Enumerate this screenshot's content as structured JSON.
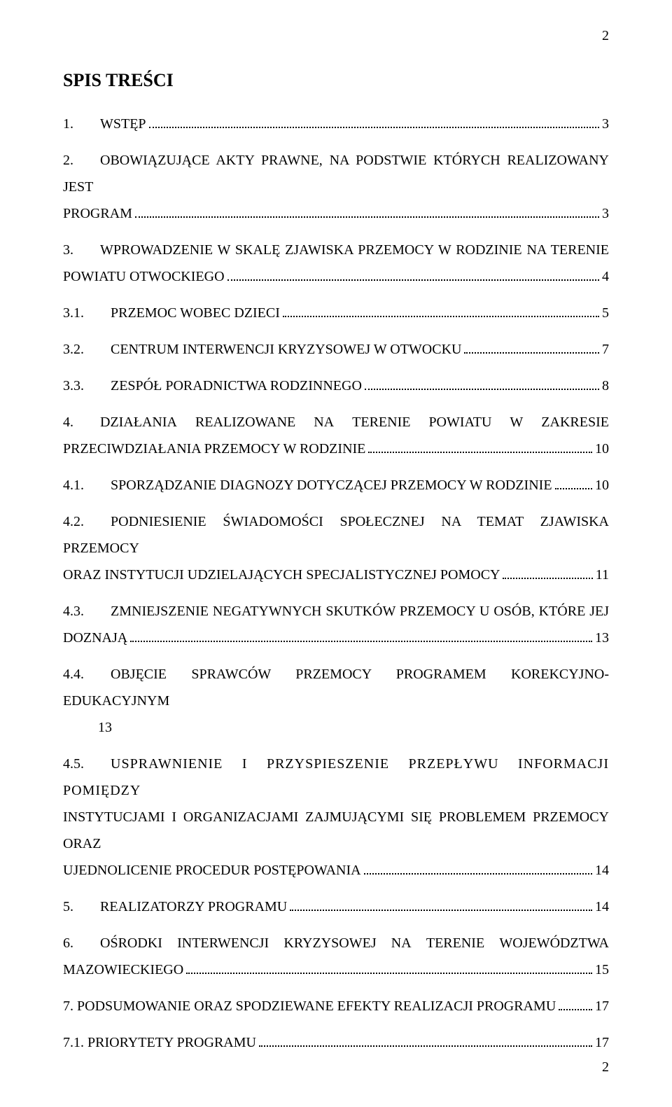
{
  "page": {
    "top_number": "2",
    "bottom_number": "2",
    "title": "SPIS TREŚCI",
    "background_color": "#ffffff",
    "text_color": "#000000",
    "font_family": "Times New Roman",
    "title_fontsize": 26,
    "body_fontsize": 20
  },
  "toc": {
    "e1": {
      "num": "1.",
      "text": "WSTĘP",
      "page": "3"
    },
    "e2": {
      "num": "2.",
      "text_l1": "OBOWIĄZUJĄCE AKTY PRAWNE, NA PODSTWIE KTÓRYCH REALIZOWANY JEST",
      "text_last": "PROGRAM",
      "page": "3"
    },
    "e3": {
      "num": "3.",
      "text_l1": "WPROWADZENIE W SKALĘ ZJAWISKA PRZEMOCY  W RODZINIE  NA TERENIE",
      "text_last": "POWIATU OTWOCKIEGO",
      "page": "4"
    },
    "e4": {
      "num": "3.1.",
      "text": "PRZEMOC WOBEC DZIECI",
      "page": "5"
    },
    "e5": {
      "num": "3.2.",
      "text": "CENTRUM INTERWENCJI KRYZYSOWEJ W OTWOCKU",
      "page": "7"
    },
    "e6": {
      "num": "3.3.",
      "text": "ZESPÓŁ PORADNICTWA RODZINNEGO",
      "page": "8"
    },
    "e7": {
      "num": "4.",
      "text_l1_a": "DZIAŁANIA",
      "text_l1_b": "REALIZOWANE",
      "text_l1_c": "NA",
      "text_l1_d": "TERENIE",
      "text_l1_e": "POWIATU",
      "text_l1_f": "W",
      "text_l1_g": "ZAKRESIE",
      "text_last": "PRZECIWDZIAŁANIA PRZEMOCY W RODZINIE",
      "page": "10"
    },
    "e8": {
      "num": "4.1.",
      "text": "SPORZĄDZANIE DIAGNOZY DOTYCZĄCEJ PRZEMOCY W RODZINIE",
      "page": "10"
    },
    "e9": {
      "num": "4.2.",
      "text_l1": "PODNIESIENIE ŚWIADOMOŚCI SPOŁECZNEJ NA TEMAT ZJAWISKA PRZEMOCY",
      "text_last": "ORAZ INSTYTUCJI UDZIELAJĄCYCH SPECJALISTYCZNEJ POMOCY",
      "page": "11"
    },
    "e10": {
      "num": "4.3.",
      "text_l1": "ZMNIEJSZENIE NEGATYWNYCH SKUTKÓW PRZEMOCY U OSÓB, KTÓRE JEJ",
      "text_last": "DOZNAJĄ",
      "page": "13"
    },
    "e11": {
      "num": "4.4.",
      "text_l1": "OBJĘCIE SPRAWCÓW PRZEMOCY PROGRAMEM KOREKCYJNO-EDUKACYJNYM",
      "text_last": "13",
      "no_page": true
    },
    "e12": {
      "num": "4.5.",
      "text_l1": "USPRAWNIENIE I PRZYSPIESZENIE PRZEPŁYWU INFORMACJI POMIĘDZY",
      "text_l2": "INSTYTUCJAMI I ORGANIZACJAMI ZAJMUJĄCYMI SIĘ PROBLEMEM PRZEMOCY ORAZ",
      "text_last": "UJEDNOLICENIE PROCEDUR POSTĘPOWANIA",
      "page": "14"
    },
    "e13": {
      "num": "5.",
      "text": "REALIZATORZY PROGRAMU",
      "page": "14"
    },
    "e14": {
      "num": "6.",
      "text_l1_a": "OŚRODKI",
      "text_l1_b": "INTERWENCJI",
      "text_l1_c": "KRYZYSOWEJ",
      "text_l1_d": "NA",
      "text_l1_e": "TERENIE",
      "text_l1_f": "WOJEWÓDZTWA",
      "text_last": "MAZOWIECKIEGO",
      "page": "15"
    },
    "e15": {
      "num": "",
      "text": "7. PODSUMOWANIE ORAZ SPODZIEWANE EFEKTY REALIZACJI PROGRAMU",
      "page": "17"
    },
    "e16": {
      "num": "",
      "text": "7.1. PRIORYTETY PROGRAMU",
      "page": "17"
    }
  }
}
